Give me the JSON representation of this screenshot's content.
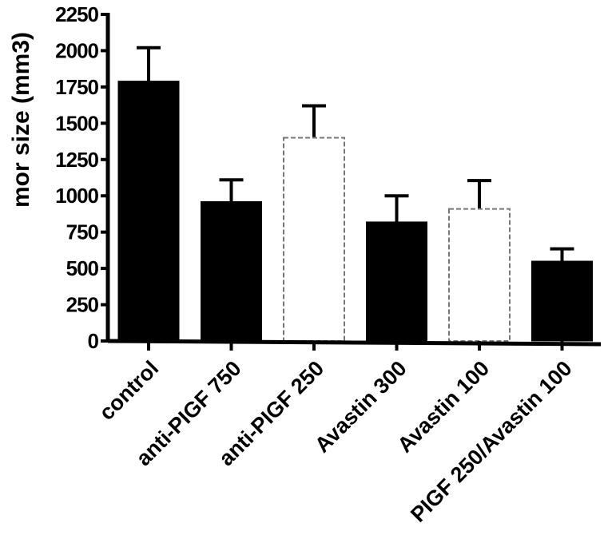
{
  "chart_data": {
    "type": "bar",
    "title": "",
    "xlabel": "",
    "ylabel": "mor size (mm3)",
    "ylim": [
      0,
      2250
    ],
    "yticks": [
      0,
      250,
      500,
      750,
      1000,
      1250,
      1500,
      1750,
      2000,
      2250
    ],
    "grid": false,
    "categories": [
      "control",
      "anti-PIGF 750",
      "anti-PIGF 250",
      "Avastin 300",
      "Avastin 100",
      "PIGF 250/Avastin 100"
    ],
    "values": [
      1790,
      960,
      1400,
      820,
      910,
      550
    ],
    "error_upper": [
      2020,
      1110,
      1620,
      1000,
      1105,
      635
    ],
    "bar_colors": [
      "#000000",
      "#000000",
      "#ffffff",
      "#000000",
      "#ffffff",
      "#000000"
    ]
  }
}
